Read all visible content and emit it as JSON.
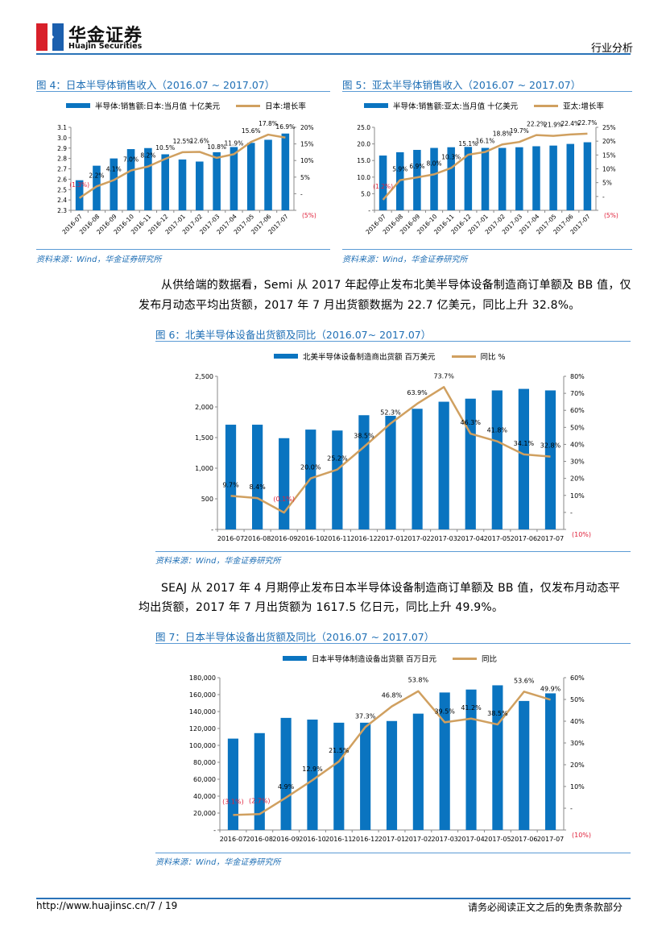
{
  "header": {
    "brand_cn": "华金证券",
    "brand_en": "Huajin Securities",
    "section": "行业分析"
  },
  "colors": {
    "bar": "#0a74c0",
    "line": "#d0a060",
    "title": "#1f6fb5",
    "negative": "#e0203a"
  },
  "paragraphs": [
    {
      "lines": [
        "从供给端的数据看，Semi 从 2017 年起停止发布北美半导体设备制造商订单额及 BB 值，仅",
        "发布月动态平均出货额，2017 年 7 月出货额数据为 22.7 亿美元，同比上升 32.8%。"
      ]
    },
    {
      "lines": [
        "SEAJ 从 2017 年 4 月期停止发布日本半导体设备制造商订单额及 BB 值，仅发布月动态平",
        "均出货额，2017 年 7 月出货额为 1617.5 亿日元，同比上升 49.9%。"
      ]
    }
  ],
  "footer": {
    "url_page": "http://www.huajinsc.cn/7 / 19",
    "disclaimer": "请务必阅读正文之后的免责条款部分"
  },
  "chart_data": [
    {
      "type": "bar+line",
      "title": "图 4：日本半导体销售收入（2016.07 ~ 2017.07）",
      "source": "资料来源：Wind，华金证券研究所",
      "legend": [
        "半导体:销售额:日本:当月值 十亿美元",
        "日本:增长率"
      ],
      "categories": [
        "2016-07",
        "2016-08",
        "2016-09",
        "2016-10",
        "2016-11",
        "2016-12",
        "2017-01",
        "2017-02",
        "2017-03",
        "2017-04",
        "2017-05",
        "2017-06",
        "2017-07"
      ],
      "bars": [
        2.59,
        2.73,
        2.8,
        2.89,
        2.9,
        2.84,
        2.79,
        2.77,
        2.86,
        2.91,
        2.95,
        2.98,
        3.04
      ],
      "line": [
        -1.3,
        2.2,
        4.1,
        7.0,
        8.2,
        10.5,
        12.5,
        12.6,
        10.8,
        11.9,
        15.6,
        17.8,
        16.9
      ],
      "line_labels": [
        "(1.3%)",
        "2.2%",
        "4.1%",
        "7.0%",
        "8.2%",
        "10.5%",
        "12.5%",
        "12.6%",
        "10.8%",
        "11.9%",
        "15.6%",
        "17.8%",
        "16.9%"
      ],
      "ylim_left": [
        2.3,
        3.1
      ],
      "ylim_right": [
        -5,
        20
      ],
      "left_ticks": [
        "2.3",
        "2.4",
        "2.5",
        "2.6",
        "2.7",
        "2.8",
        "2.9",
        "3.0",
        "3.1"
      ],
      "right_ticks": [
        "(5%)",
        "-",
        "5%",
        "10%",
        "15%",
        "20%"
      ],
      "x_rotated": true
    },
    {
      "type": "bar+line",
      "title": "图 5：亚太半导体销售收入（2016.07 ~ 2017.07）",
      "source": "资料来源：Wind，华金证券研究所",
      "legend": [
        "半导体:销售额:亚太:当月值 十亿美元",
        "亚太:增长率"
      ],
      "categories": [
        "2016-07",
        "2016-08",
        "2016-09",
        "2016-10",
        "2016-11",
        "2016-12",
        "2017-01",
        "2017-02",
        "2017-03",
        "2017-04",
        "2017-05",
        "2017-06",
        "2017-07"
      ],
      "bars": [
        16.5,
        17.5,
        18.2,
        18.8,
        19.0,
        19.1,
        18.8,
        18.8,
        19.0,
        19.3,
        19.5,
        20.0,
        20.5
      ],
      "line": [
        -1.2,
        5.9,
        6.9,
        8.0,
        10.3,
        15.1,
        16.1,
        18.8,
        19.7,
        22.2,
        21.9,
        22.4,
        22.7
      ],
      "line_labels": [
        "(1.2%)",
        "5.9%",
        "6.9%",
        "8.0%",
        "10.3%",
        "15.1%",
        "16.1%",
        "18.8%",
        "19.7%",
        "22.2%",
        "21.9%",
        "22.4%",
        "22.7%"
      ],
      "ylim_left": [
        0,
        25
      ],
      "ylim_right": [
        -5,
        25
      ],
      "left_ticks": [
        "-",
        "5.0",
        "10.0",
        "15.0",
        "20.0",
        "25.0"
      ],
      "right_ticks": [
        "(5%)",
        "-",
        "5%",
        "10%",
        "15%",
        "20%",
        "25%"
      ],
      "x_rotated": true
    },
    {
      "type": "bar+line",
      "title": "图 6：北美半导体设备出货额及同比（2016.07~ 2017.07）",
      "source": "资料来源：Wind，华金证券研究所",
      "legend": [
        "北美半导体设备制造商出货额 百万美元",
        "同比 %"
      ],
      "categories": [
        "2016-07",
        "2016-08",
        "2016-09",
        "2016-10",
        "2016-11",
        "2016-12",
        "2017-01",
        "2017-02",
        "2017-03",
        "2017-04",
        "2017-05",
        "2017-06",
        "2017-07"
      ],
      "bars": [
        1710,
        1710,
        1490,
        1630,
        1615,
        1865,
        1855,
        1970,
        2085,
        2135,
        2270,
        2295,
        2270
      ],
      "line": [
        9.7,
        8.4,
        -0.1,
        20.0,
        25.2,
        38.5,
        52.3,
        63.9,
        73.7,
        46.3,
        41.8,
        34.1,
        32.8
      ],
      "line_labels": [
        "9.7%",
        "8.4%",
        "(0.1%)",
        "20.0%",
        "25.2%",
        "38.5%",
        "52.3%",
        "63.9%",
        "73.7%",
        "46.3%",
        "41.8%",
        "34.1%",
        "32.8%"
      ],
      "ylim_left": [
        0,
        2500
      ],
      "ylim_right": [
        -10,
        80
      ],
      "left_ticks": [
        "-",
        "500",
        "1,000",
        "1,500",
        "2,000",
        "2,500"
      ],
      "right_ticks": [
        "(10%)",
        "-",
        "10%",
        "20%",
        "30%",
        "40%",
        "50%",
        "60%",
        "70%",
        "80%"
      ],
      "x_rotated": false
    },
    {
      "type": "bar+line",
      "title": "图 7：日本半导体设备出货额及同比（2016.07 ~ 2017.07）",
      "source": "资料来源：Wind，华金证券研究所",
      "legend": [
        "日本半导体制造设备出货额 百万日元",
        "同比"
      ],
      "categories": [
        "2016-07",
        "2016-08",
        "2016-09",
        "2016-10",
        "2016-11",
        "2016-12",
        "2017-01",
        "2017-02",
        "2017-03",
        "2017-04",
        "2017-05",
        "2017-06",
        "2017-07"
      ],
      "bars": [
        108000,
        114500,
        132500,
        130500,
        126800,
        126800,
        128800,
        137500,
        162500,
        166000,
        171000,
        152500,
        161500
      ],
      "line": [
        -3.1,
        -2.7,
        4.9,
        12.9,
        21.5,
        37.3,
        46.8,
        53.8,
        39.5,
        41.2,
        38.5,
        53.6,
        49.9
      ],
      "line_labels": [
        "(3.1%)",
        "(2.7%)",
        "4.9%",
        "12.9%",
        "21.5%",
        "37.3%",
        "46.8%",
        "53.8%",
        "39.5%",
        "41.2%",
        "38.5%",
        "53.6%",
        "49.9%"
      ],
      "ylim_left": [
        0,
        180000
      ],
      "ylim_right": [
        -10,
        60
      ],
      "left_ticks": [
        "-",
        "20,000",
        "40,000",
        "60,000",
        "80,000",
        "100,000",
        "120,000",
        "140,000",
        "160,000",
        "180,000"
      ],
      "right_ticks": [
        "(10%)",
        "-",
        "10%",
        "20%",
        "30%",
        "40%",
        "50%",
        "60%"
      ],
      "x_rotated": false
    }
  ]
}
